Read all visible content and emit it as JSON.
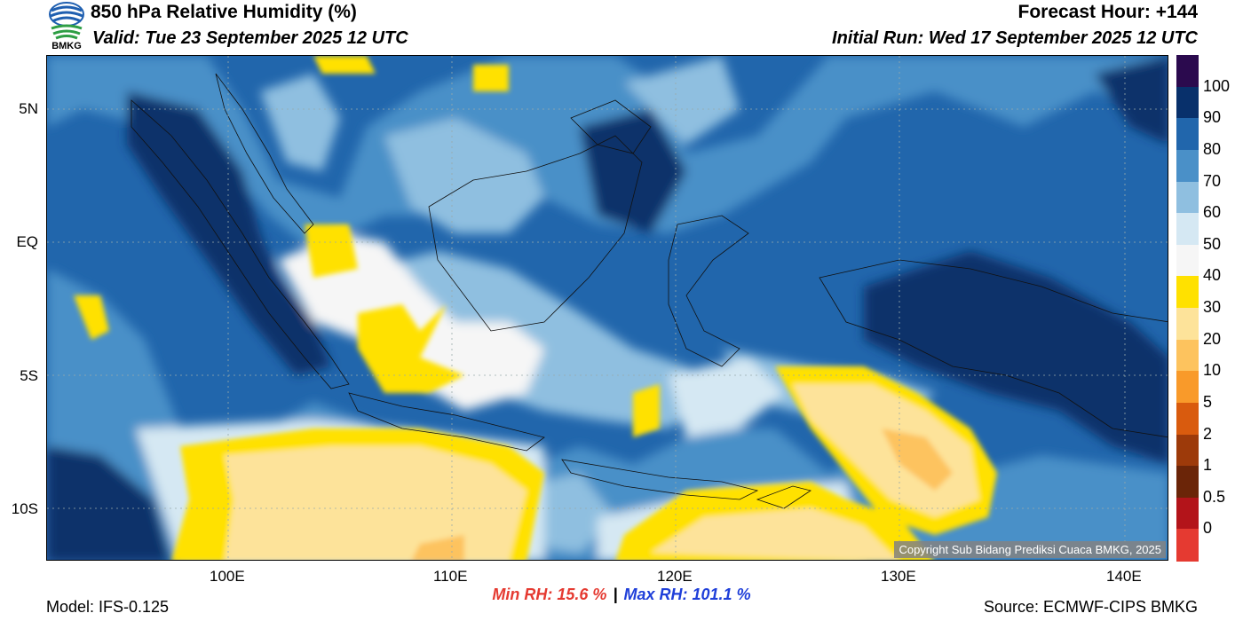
{
  "header": {
    "title": "850 hPa Relative Humidity (%)",
    "valid": "Valid: Tue 23 September 2025 12 UTC",
    "forecast_hour": "Forecast Hour: +144",
    "initial_run": "Initial Run: Wed 17 September 2025 12 UTC"
  },
  "logo": {
    "text": "BMKG",
    "colors": [
      "#1f5fb0",
      "#2e9e44"
    ]
  },
  "map": {
    "lat_labels": [
      "5N",
      "EQ",
      "5S",
      "10S"
    ],
    "lon_labels": [
      "100E",
      "110E",
      "120E",
      "130E",
      "140E"
    ],
    "copyright": "Copyright Sub Bidang Prediksi Cuaca BMKG, 2025"
  },
  "colorbar": {
    "labels": [
      "100",
      "90",
      "80",
      "70",
      "60",
      "50",
      "40",
      "30",
      "20",
      "10",
      "5",
      "2",
      "1",
      "0.5",
      "0"
    ],
    "colors": [
      "#2b0a4e",
      "#08306b",
      "#2166ac",
      "#4a90c8",
      "#8fbfe0",
      "#d5e8f3",
      "#f6f6f6",
      "#ffe100",
      "#fde39a",
      "#fdc35e",
      "#f99a2a",
      "#d95b0e",
      "#9d3a0a",
      "#6b2508",
      "#b3141a",
      "#e53a31"
    ]
  },
  "stats": {
    "min": "Min RH:  15.6 %",
    "sep": "|",
    "max": "Max RH: 101.1 %",
    "min_color": "#e53a31",
    "max_color": "#1f3fd9"
  },
  "footer": {
    "model": "Model: IFS-0.125",
    "source": "Source: ECMWF-CIPS BMKG"
  }
}
